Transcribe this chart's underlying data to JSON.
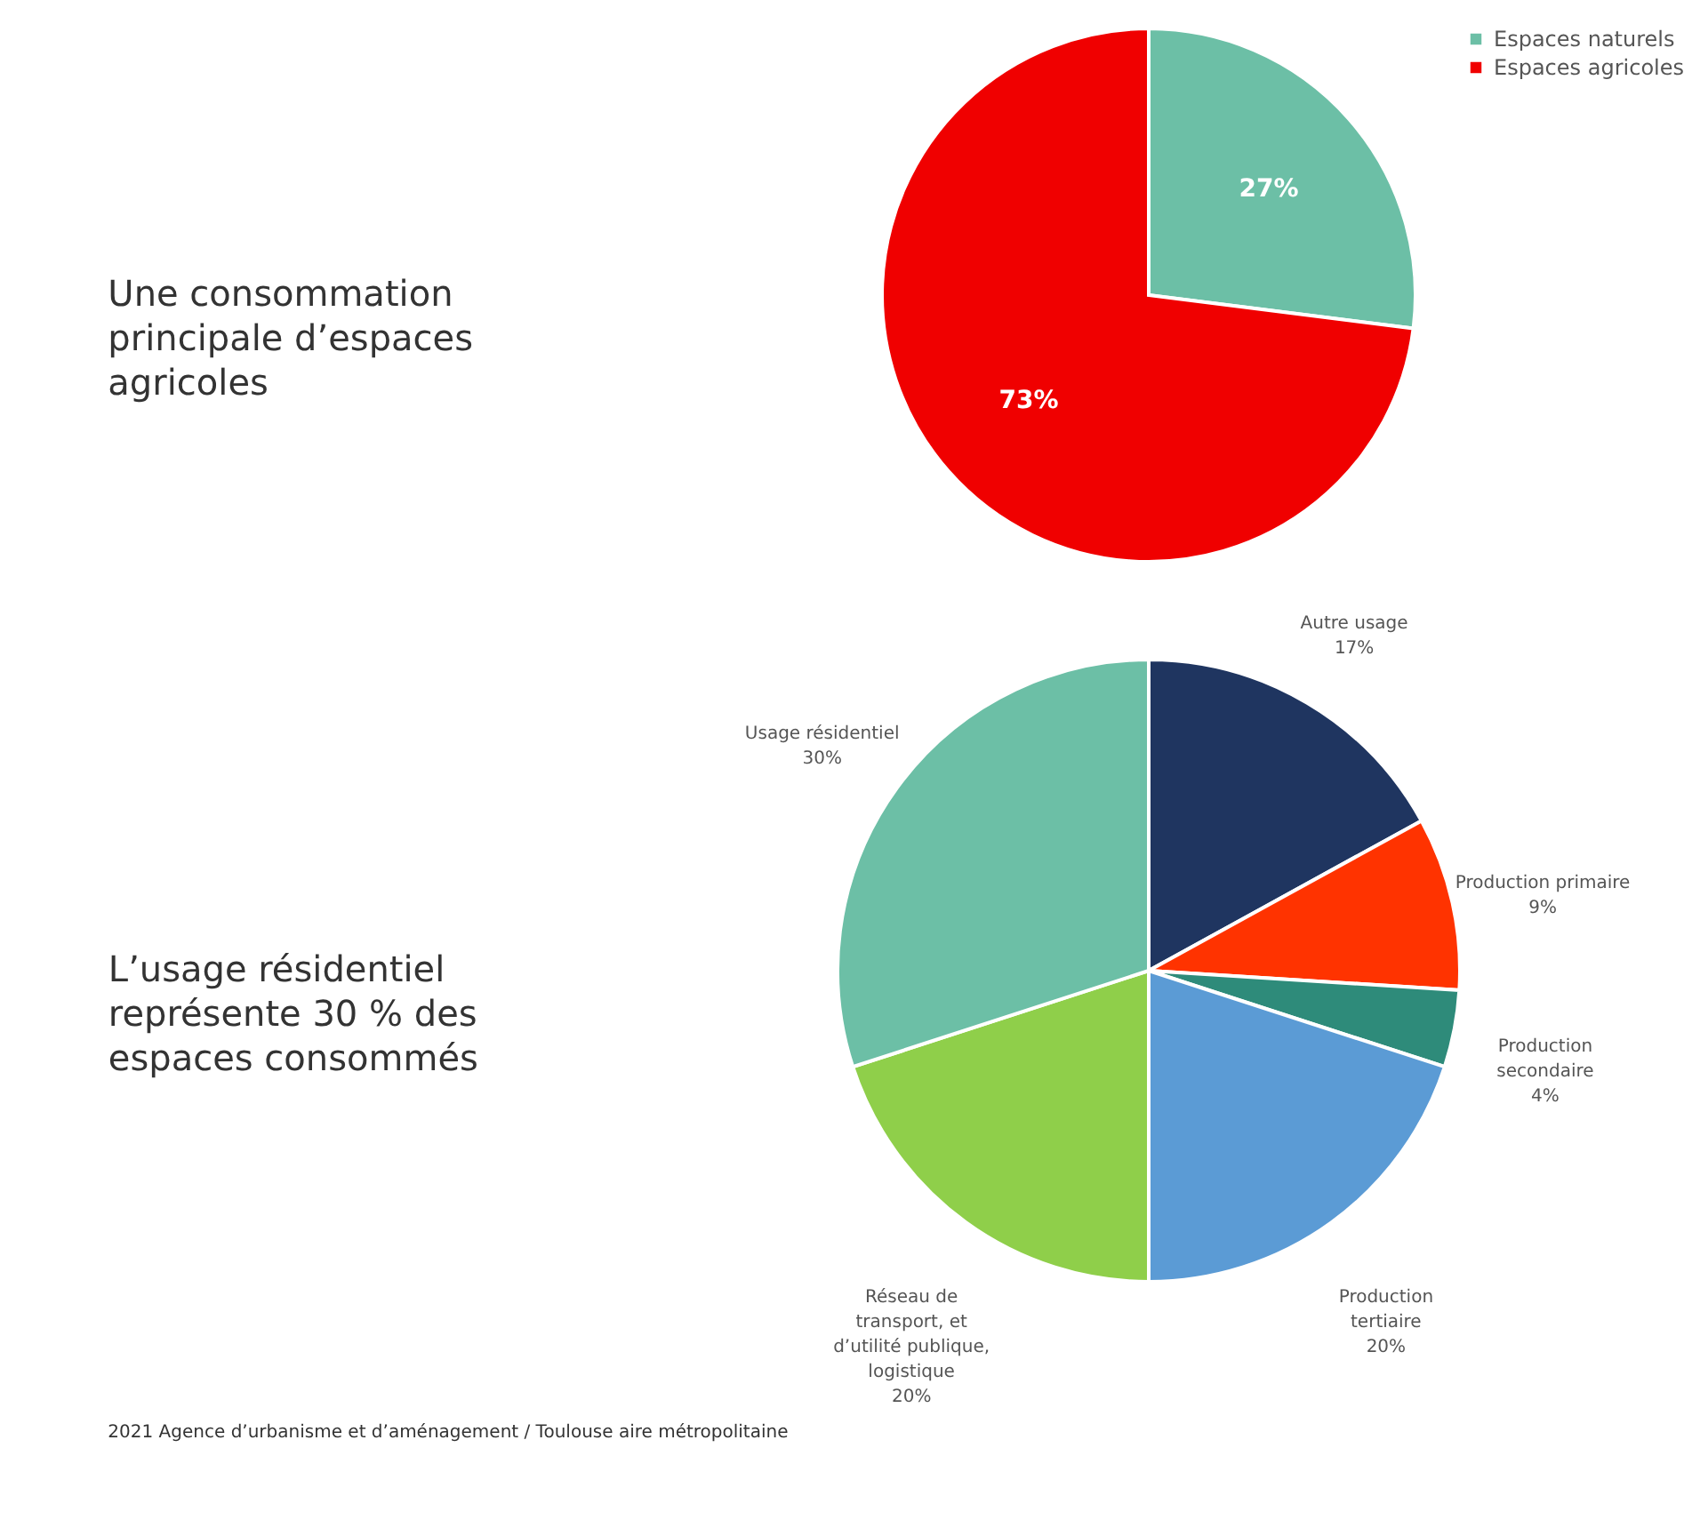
{
  "chart_data": [
    {
      "type": "pie",
      "title": "Une consommation principale d’espaces agricoles",
      "categories": [
        "Espaces naturels",
        "Espaces agricoles"
      ],
      "values": [
        27,
        73
      ],
      "value_labels": [
        "27%",
        "73%"
      ],
      "colors": [
        "#6cbfa6",
        "#f00000"
      ],
      "legend": "right"
    },
    {
      "type": "pie",
      "title": "L’usage résidentiel représente 30 % des espaces consommés",
      "categories": [
        "Autre usage",
        "Production primaire",
        "Production secondaire",
        "Production tertiaire",
        "Réseau de transport, et d’utilité publique, logistique",
        "Usage résidentiel"
      ],
      "values": [
        17,
        9,
        4,
        20,
        20,
        30
      ],
      "value_labels": [
        "17%",
        "9%",
        "4%",
        "20%",
        "20%",
        "30%"
      ],
      "colors": [
        "#1f3560",
        "#ff3300",
        "#2e8b7a",
        "#5b9bd5",
        "#8fcf4a",
        "#6cbfa6"
      ],
      "legend": false,
      "annotations": [
        "2021 Agence d’urbanisme et d’aménagement / Toulouse aire métropolitaine"
      ]
    }
  ]
}
